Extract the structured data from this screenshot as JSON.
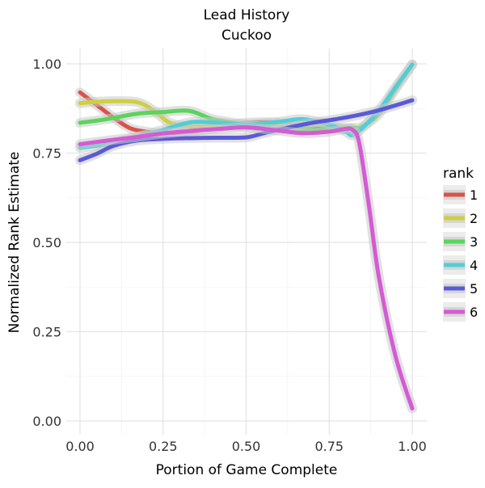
{
  "chart_data": {
    "type": "line",
    "title": "Lead History",
    "subtitle": "Cuckoo",
    "xlabel": "Portion of Game Complete",
    "ylabel": "Normalized Rank Estimate",
    "xlim": [
      0,
      1
    ],
    "ylim": [
      0,
      1
    ],
    "x_ticks": [
      "0.00",
      "0.25",
      "0.50",
      "0.75",
      "1.00"
    ],
    "y_ticks": [
      "0.00",
      "0.25",
      "0.50",
      "0.75",
      "1.00"
    ],
    "grid": true,
    "legend": {
      "title": "rank",
      "position": "right"
    },
    "series": [
      {
        "name": "1",
        "color": "#d9534a",
        "x": [
          0.0,
          0.05,
          0.1,
          0.15,
          0.2,
          0.25,
          0.33,
          0.4,
          0.5,
          0.6,
          0.67,
          0.75,
          0.82
        ],
        "y": [
          0.92,
          0.885,
          0.85,
          0.82,
          0.81,
          0.805,
          0.81,
          0.82,
          0.835,
          0.835,
          0.825,
          0.82,
          0.815
        ]
      },
      {
        "name": "2",
        "color": "#cfcf40",
        "x": [
          0.0,
          0.08,
          0.17,
          0.22,
          0.27,
          0.33,
          0.4,
          0.5,
          0.6,
          0.67,
          0.75,
          0.82
        ],
        "y": [
          0.89,
          0.895,
          0.893,
          0.87,
          0.835,
          0.825,
          0.825,
          0.825,
          0.825,
          0.825,
          0.82,
          0.82
        ]
      },
      {
        "name": "3",
        "color": "#5bd45b",
        "x": [
          0.0,
          0.08,
          0.17,
          0.25,
          0.33,
          0.4,
          0.5,
          0.6,
          0.67,
          0.75,
          0.82,
          0.85,
          0.9,
          0.95,
          1.0
        ],
        "y": [
          0.835,
          0.845,
          0.86,
          0.865,
          0.868,
          0.845,
          0.83,
          0.82,
          0.818,
          0.82,
          0.82,
          0.825,
          0.86,
          0.93,
          0.998
        ]
      },
      {
        "name": "4",
        "color": "#52cdd8",
        "x": [
          0.0,
          0.08,
          0.17,
          0.25,
          0.33,
          0.4,
          0.5,
          0.6,
          0.67,
          0.75,
          0.8,
          0.82,
          0.85,
          0.9,
          0.95,
          1.0
        ],
        "y": [
          0.765,
          0.775,
          0.795,
          0.815,
          0.836,
          0.836,
          0.83,
          0.838,
          0.845,
          0.83,
          0.81,
          0.8,
          0.82,
          0.87,
          0.935,
          0.998
        ]
      },
      {
        "name": "5",
        "color": "#5a5ad8",
        "x": [
          0.0,
          0.05,
          0.1,
          0.17,
          0.25,
          0.33,
          0.42,
          0.5,
          0.55,
          0.62,
          0.7,
          0.77,
          0.83,
          0.9,
          1.0
        ],
        "y": [
          0.73,
          0.748,
          0.77,
          0.785,
          0.79,
          0.792,
          0.793,
          0.794,
          0.805,
          0.82,
          0.835,
          0.845,
          0.855,
          0.87,
          0.898
        ]
      },
      {
        "name": "6",
        "color": "#d45bd4",
        "x": [
          0.0,
          0.08,
          0.17,
          0.25,
          0.33,
          0.42,
          0.5,
          0.58,
          0.67,
          0.75,
          0.8,
          0.82,
          0.84,
          0.87,
          0.9,
          0.95,
          1.0
        ],
        "y": [
          0.775,
          0.785,
          0.795,
          0.805,
          0.812,
          0.818,
          0.822,
          0.815,
          0.806,
          0.81,
          0.818,
          0.815,
          0.78,
          0.6,
          0.4,
          0.18,
          0.035
        ]
      }
    ]
  }
}
